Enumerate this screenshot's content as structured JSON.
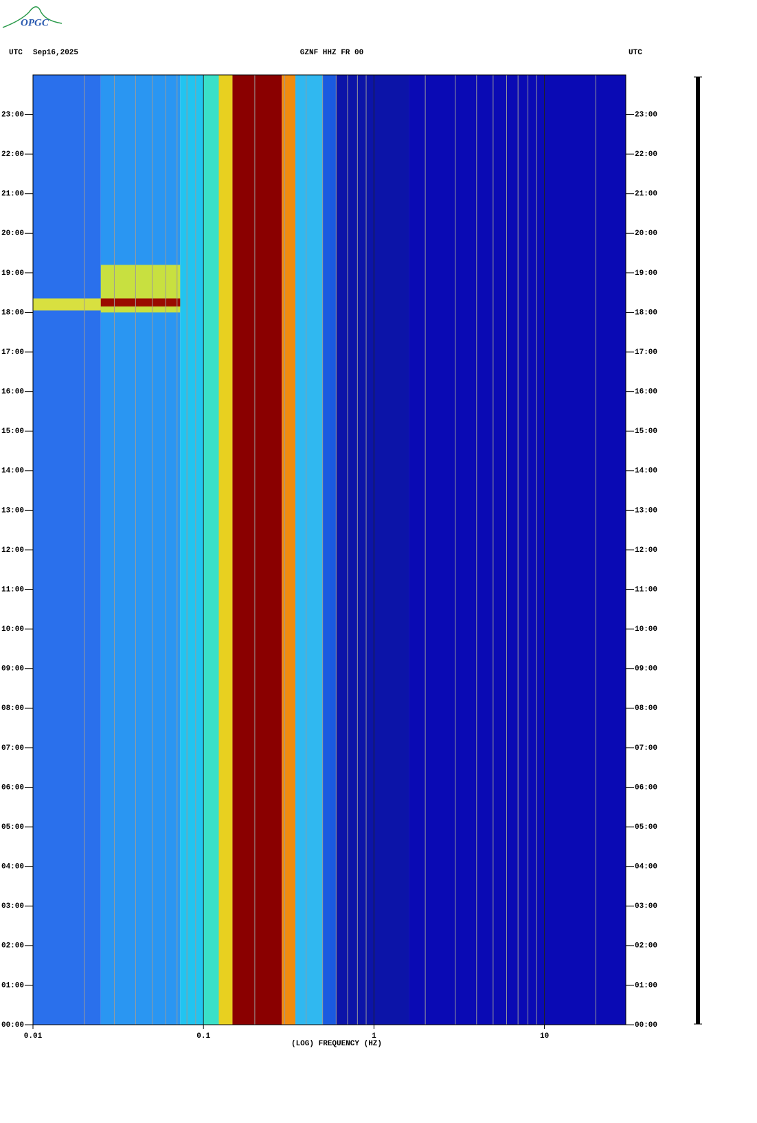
{
  "logo": "OPGC",
  "chart_data": {
    "type": "spectrogram",
    "header_left_zone": "UTC",
    "header_date": "Sep16,2025",
    "title": "GZNF HHZ FR 00",
    "header_right_zone": "UTC",
    "x_label": "(LOG) FREQUENCY (HZ)",
    "x_log": true,
    "xlim": [
      0.01,
      30
    ],
    "xticks": [
      0.01,
      0.1,
      1,
      10
    ],
    "xgrid": [
      0.02,
      0.03,
      0.04,
      0.05,
      0.06,
      0.07,
      0.08,
      0.09,
      0.2,
      0.3,
      0.4,
      0.5,
      0.6,
      0.7,
      0.8,
      0.9,
      2,
      3,
      4,
      5,
      6,
      7,
      8,
      9,
      20
    ],
    "ylim": [
      0,
      24
    ],
    "yticks": [
      {
        "value": 0,
        "label": "00:00"
      },
      {
        "value": 1,
        "label": "01:00"
      },
      {
        "value": 2,
        "label": "02:00"
      },
      {
        "value": 3,
        "label": "03:00"
      },
      {
        "value": 4,
        "label": "04:00"
      },
      {
        "value": 5,
        "label": "05:00"
      },
      {
        "value": 6,
        "label": "06:00"
      },
      {
        "value": 7,
        "label": "07:00"
      },
      {
        "value": 8,
        "label": "08:00"
      },
      {
        "value": 9,
        "label": "09:00"
      },
      {
        "value": 10,
        "label": "10:00"
      },
      {
        "value": 11,
        "label": "11:00"
      },
      {
        "value": 12,
        "label": "12:00"
      },
      {
        "value": 13,
        "label": "13:00"
      },
      {
        "value": 14,
        "label": "14:00"
      },
      {
        "value": 15,
        "label": "15:00"
      },
      {
        "value": 16,
        "label": "16:00"
      },
      {
        "value": 17,
        "label": "17:00"
      },
      {
        "value": 18,
        "label": "18:00"
      },
      {
        "value": 19,
        "label": "19:00"
      },
      {
        "value": 20,
        "label": "20:00"
      },
      {
        "value": 21,
        "label": "21:00"
      },
      {
        "value": 22,
        "label": "22:00"
      },
      {
        "value": 23,
        "label": "23:00"
      }
    ],
    "bands": [
      {
        "from": 0.01,
        "to": 0.025,
        "color": "#2a70ec"
      },
      {
        "from": 0.025,
        "to": 0.073,
        "color": "#2a96f2"
      },
      {
        "from": 0.073,
        "to": 0.1,
        "color": "#22c4f0"
      },
      {
        "from": 0.1,
        "to": 0.123,
        "color": "#3ae0c8"
      },
      {
        "from": 0.123,
        "to": 0.148,
        "color": "#e8d020"
      },
      {
        "from": 0.148,
        "to": 0.288,
        "color": "#8a0000"
      },
      {
        "from": 0.288,
        "to": 0.346,
        "color": "#f08c10"
      },
      {
        "from": 0.346,
        "to": 0.5,
        "color": "#30b8f0"
      },
      {
        "from": 0.5,
        "to": 0.6,
        "color": "#1a5ae0"
      },
      {
        "from": 0.6,
        "to": 1.6,
        "color": "#0c14a8"
      },
      {
        "from": 1.6,
        "to": 30,
        "color": "#0a0ab4"
      }
    ],
    "events": [
      {
        "from": 0.01,
        "to": 0.025,
        "start": 18.05,
        "end": 18.35,
        "color": "#d8e040"
      },
      {
        "from": 0.025,
        "to": 0.073,
        "start": 18.0,
        "end": 19.2,
        "color": "#c8e040"
      },
      {
        "from": 0.025,
        "to": 0.073,
        "start": 18.15,
        "end": 18.35,
        "color": "#9a0a00"
      }
    ]
  }
}
